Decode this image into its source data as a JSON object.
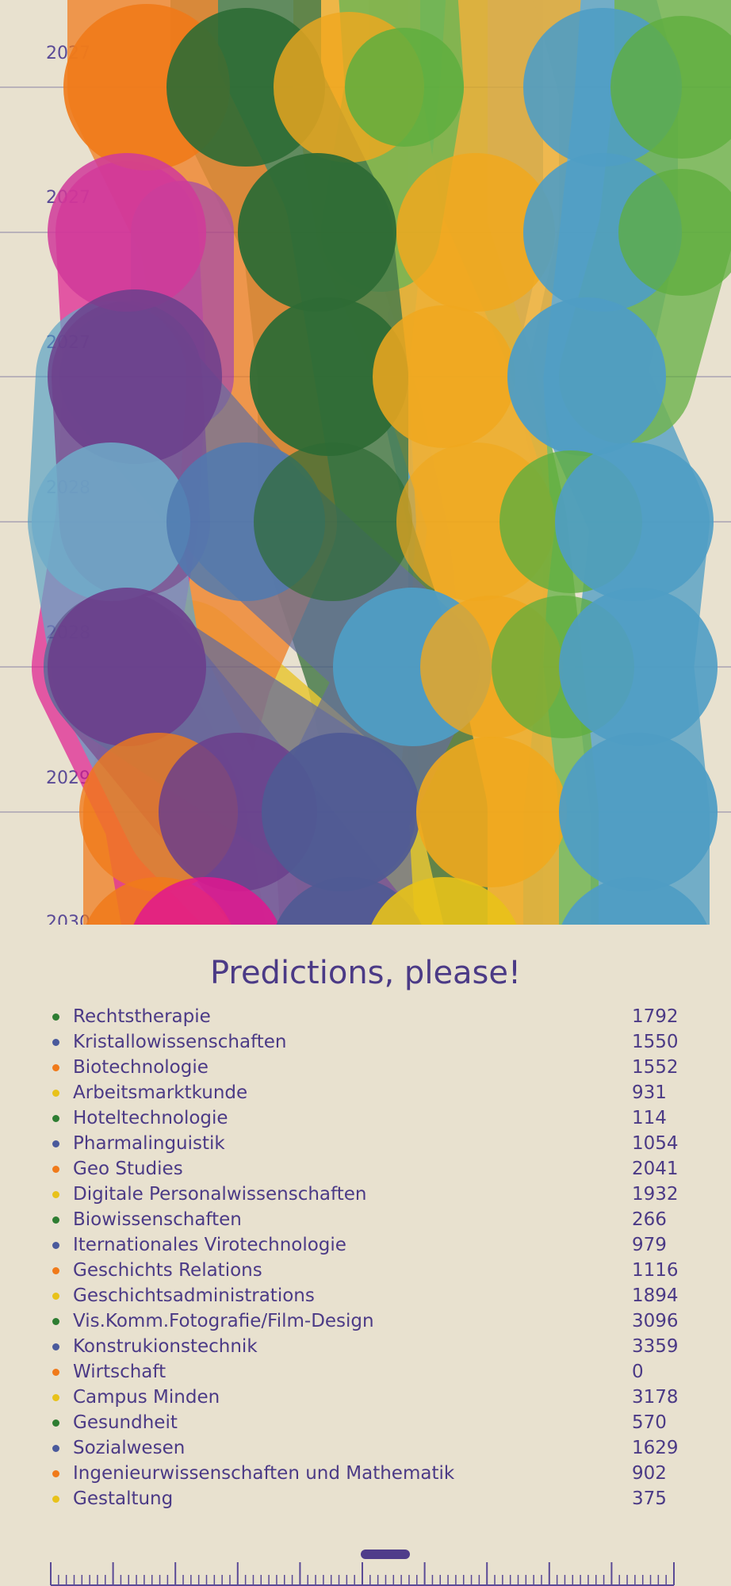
{
  "years": [
    "2027",
    "2027",
    "2027",
    "2028",
    "2028",
    "2029",
    "2030"
  ],
  "panel_title": "Predictions, please!",
  "programs": [
    {
      "name": "Rechtstherapie",
      "count": "1792",
      "dot_color": "#2e7d32"
    },
    {
      "name": "Kristallowissenschaften",
      "count": "1550",
      "dot_color": "#4a5a9c"
    },
    {
      "name": "Biotechnologie",
      "count": "1552",
      "dot_color": "#f07a1a"
    },
    {
      "name": "Arbeitsmarktkunde",
      "count": "931",
      "dot_color": "#e8c21a"
    },
    {
      "name": "Hoteltechnologie",
      "count": "114",
      "dot_color": "#2e7d32"
    },
    {
      "name": "Pharmalinguistik",
      "count": "1054",
      "dot_color": "#4a5a9c"
    },
    {
      "name": "Geo Studies",
      "count": "2041",
      "dot_color": "#f07a1a"
    },
    {
      "name": "Digitale Personalwissenschaften",
      "count": "1932",
      "dot_color": "#e8c21a"
    },
    {
      "name": "Biowissenschaften",
      "count": "266",
      "dot_color": "#2e7d32"
    },
    {
      "name": "Iternationales Virotechnologie",
      "count": "979",
      "dot_color": "#4a5a9c"
    },
    {
      "name": "Geschichts Relations",
      "count": "1116",
      "dot_color": "#f07a1a"
    },
    {
      "name": "Geschichtsadministrations",
      "count": "1894",
      "dot_color": "#e8c21a"
    },
    {
      "name": "Vis.Komm.Fotografie/Film-Design",
      "count": "3096",
      "dot_color": "#2e7d32"
    },
    {
      "name": "Konstrukionstechnik",
      "count": "3359",
      "dot_color": "#4a5a9c"
    },
    {
      "name": "Wirtschaft",
      "count": "0",
      "dot_color": "#f07a1a"
    },
    {
      "name": "Campus Minden",
      "count": "3178",
      "dot_color": "#e8c21a"
    },
    {
      "name": "Gesundheit",
      "count": "570",
      "dot_color": "#2e7d32"
    },
    {
      "name": "Sozialwesen",
      "count": "1629",
      "dot_color": "#4a5a9c"
    },
    {
      "name": "Ingenieurwissenschaften und Mathematik",
      "count": "902",
      "dot_color": "#f07a1a"
    },
    {
      "name": "Gestaltung",
      "count": "375",
      "dot_color": "#e8c21a"
    }
  ],
  "colors": {
    "background": "#e8e1cf",
    "text": "#4b3a86",
    "orange": "#f07a1a",
    "dark_green": "#2e6b35",
    "green": "#5fae3e",
    "yellow_orange": "#f0a81e",
    "yellow": "#e8c21a",
    "blue": "#4f9dc4",
    "magenta": "#e0168f",
    "purple": "#6b3f8c",
    "slate_blue": "#4f5a94"
  }
}
